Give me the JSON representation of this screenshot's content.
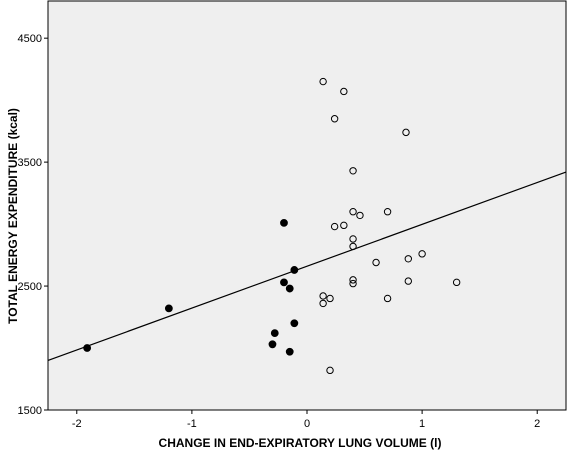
{
  "chart_data": {
    "type": "scatter",
    "title": "",
    "xlabel": "CHANGE IN END-EXPIRATORY LUNG VOLUME (l)",
    "ylabel": "TOTAL ENERGY EXPENDITURE (kcal)",
    "xlim": [
      -2.25,
      2.25
    ],
    "ylim": [
      1500,
      4800
    ],
    "x_ticks": [
      -2,
      -1,
      0,
      1,
      2
    ],
    "y_ticks": [
      1500,
      2500,
      3500,
      4500
    ],
    "grid": false,
    "legend": "none",
    "plot_background": "#efefef",
    "series": [
      {
        "marker": "filled-circle",
        "color": "#000000",
        "points": [
          {
            "x": -1.91,
            "y": 2000
          },
          {
            "x": -1.2,
            "y": 2320
          },
          {
            "x": -0.3,
            "y": 2030
          },
          {
            "x": -0.28,
            "y": 2120
          },
          {
            "x": -0.2,
            "y": 3010
          },
          {
            "x": -0.2,
            "y": 2530
          },
          {
            "x": -0.15,
            "y": 2480
          },
          {
            "x": -0.15,
            "y": 1970
          },
          {
            "x": -0.11,
            "y": 2200
          },
          {
            "x": -0.11,
            "y": 2630
          }
        ]
      },
      {
        "marker": "open-circle",
        "color": "#000000",
        "points": [
          {
            "x": 0.14,
            "y": 4150
          },
          {
            "x": 0.32,
            "y": 4070
          },
          {
            "x": 0.24,
            "y": 3850
          },
          {
            "x": 0.86,
            "y": 3740
          },
          {
            "x": 0.4,
            "y": 3430
          },
          {
            "x": 0.4,
            "y": 3100
          },
          {
            "x": 0.46,
            "y": 3070
          },
          {
            "x": 0.7,
            "y": 3100
          },
          {
            "x": 0.24,
            "y": 2980
          },
          {
            "x": 0.32,
            "y": 2990
          },
          {
            "x": 0.4,
            "y": 2880
          },
          {
            "x": 0.4,
            "y": 2820
          },
          {
            "x": 1.0,
            "y": 2760
          },
          {
            "x": 0.88,
            "y": 2720
          },
          {
            "x": 0.6,
            "y": 2690
          },
          {
            "x": 0.4,
            "y": 2550
          },
          {
            "x": 0.4,
            "y": 2520
          },
          {
            "x": 0.88,
            "y": 2540
          },
          {
            "x": 1.3,
            "y": 2530
          },
          {
            "x": 0.14,
            "y": 2420
          },
          {
            "x": 0.2,
            "y": 2400
          },
          {
            "x": 0.7,
            "y": 2400
          },
          {
            "x": 0.14,
            "y": 2360
          },
          {
            "x": 0.2,
            "y": 1820
          }
        ]
      }
    ],
    "fit_line": {
      "x": [
        -2.25,
        2.25
      ],
      "y": [
        1900,
        3420
      ]
    }
  }
}
